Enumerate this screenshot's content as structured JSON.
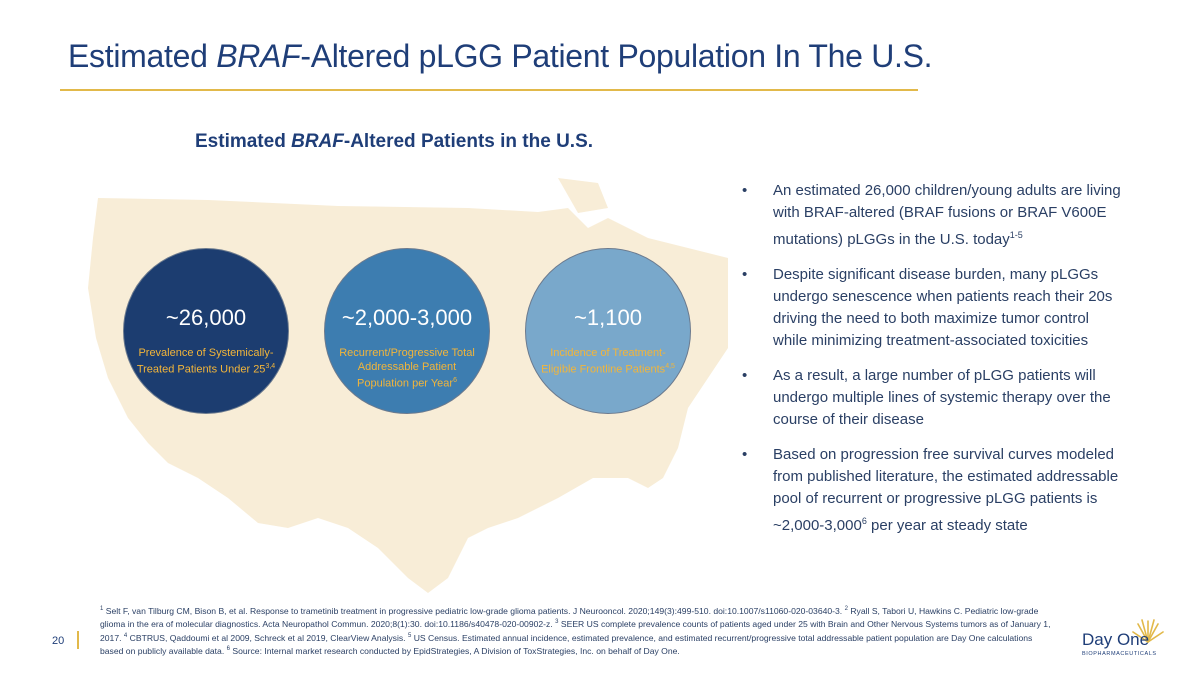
{
  "slide": {
    "title_pre": "Estimated ",
    "title_em": "BRAF",
    "title_post": "-Altered pLGG Patient Population In The U.S.",
    "page_number": "20"
  },
  "chart": {
    "subtitle_em": "BRAF",
    "subtitle_pre": "Estimated ",
    "subtitle_post": "-Altered Patients in the U.S.",
    "circles": [
      {
        "value": "~26,000",
        "label": "Prevalence of Systemically-Treated Patients Under 25",
        "sup": "3,4",
        "color": "#1c3d70"
      },
      {
        "value": "~2,000-3,000",
        "label": "Recurrent/Progressive Total Addressable Patient Population per Year",
        "sup": "6",
        "color": "#3d7db0"
      },
      {
        "value": "~1,100",
        "label": "Incidence of Treatment-Eligible Frontline Patients",
        "sup": "4,5",
        "color": "#79a8cb"
      }
    ]
  },
  "bullets": [
    {
      "text": "An estimated 26,000 children/young adults are living with BRAF-altered (BRAF fusions or BRAF V600E mutations) pLGGs in the U.S. today",
      "sup": "1-5",
      "after": ""
    },
    {
      "text": "Despite significant disease burden, many pLGGs undergo senescence when patients reach their 20s driving the need to both maximize tumor control while minimizing treatment-associated toxicities",
      "sup": "",
      "after": ""
    },
    {
      "text": "As a result, a large number of pLGG patients will undergo multiple lines of systemic therapy over the course of their disease",
      "sup": "",
      "after": ""
    },
    {
      "text": "Based on progression free survival curves modeled from published literature, the estimated addressable pool of recurrent or progressive pLGG patients is ~2,000-3,000",
      "sup": "6",
      "after": " per year at steady state"
    }
  ],
  "footnotes": {
    "f1": "Selt F, van Tilburg CM, Bison B, et al. Response to trametinib treatment in progressive pediatric low-grade glioma patients. J Neurooncol. 2020;149(3):499-510. doi:10.1007/s11060-020-03640-3.",
    "f2": "Ryall S, Tabori U, Hawkins C. Pediatric low-grade glioma in the era of molecular diagnostics. Acta Neuropathol Commun. 2020;8(1):30. doi:10.1186/s40478-020-00902-z.",
    "f3": "SEER US complete prevalence counts of patients aged under 25 with Brain and Other Nervous Systems tumors as of January 1, 2017.",
    "f4": "CBTRUS, Qaddoumi et al 2009, Schreck et al 2019, ClearView Analysis.",
    "f5": "US Census. Estimated annual incidence, estimated prevalence, and estimated recurrent/progressive total addressable patient population are Day One calculations based on publicly available data.",
    "f6": "Source: Internal market research conducted by EpidStrategies, A Division of ToxStrategies, Inc. on behalf of Day One."
  },
  "logo": {
    "name": "Day One",
    "tagline": "BIOPHARMACEUTICALS"
  },
  "colors": {
    "title": "#1f3e78",
    "accent_gold": "#e2b94a",
    "map_fill": "#f8edd7"
  }
}
